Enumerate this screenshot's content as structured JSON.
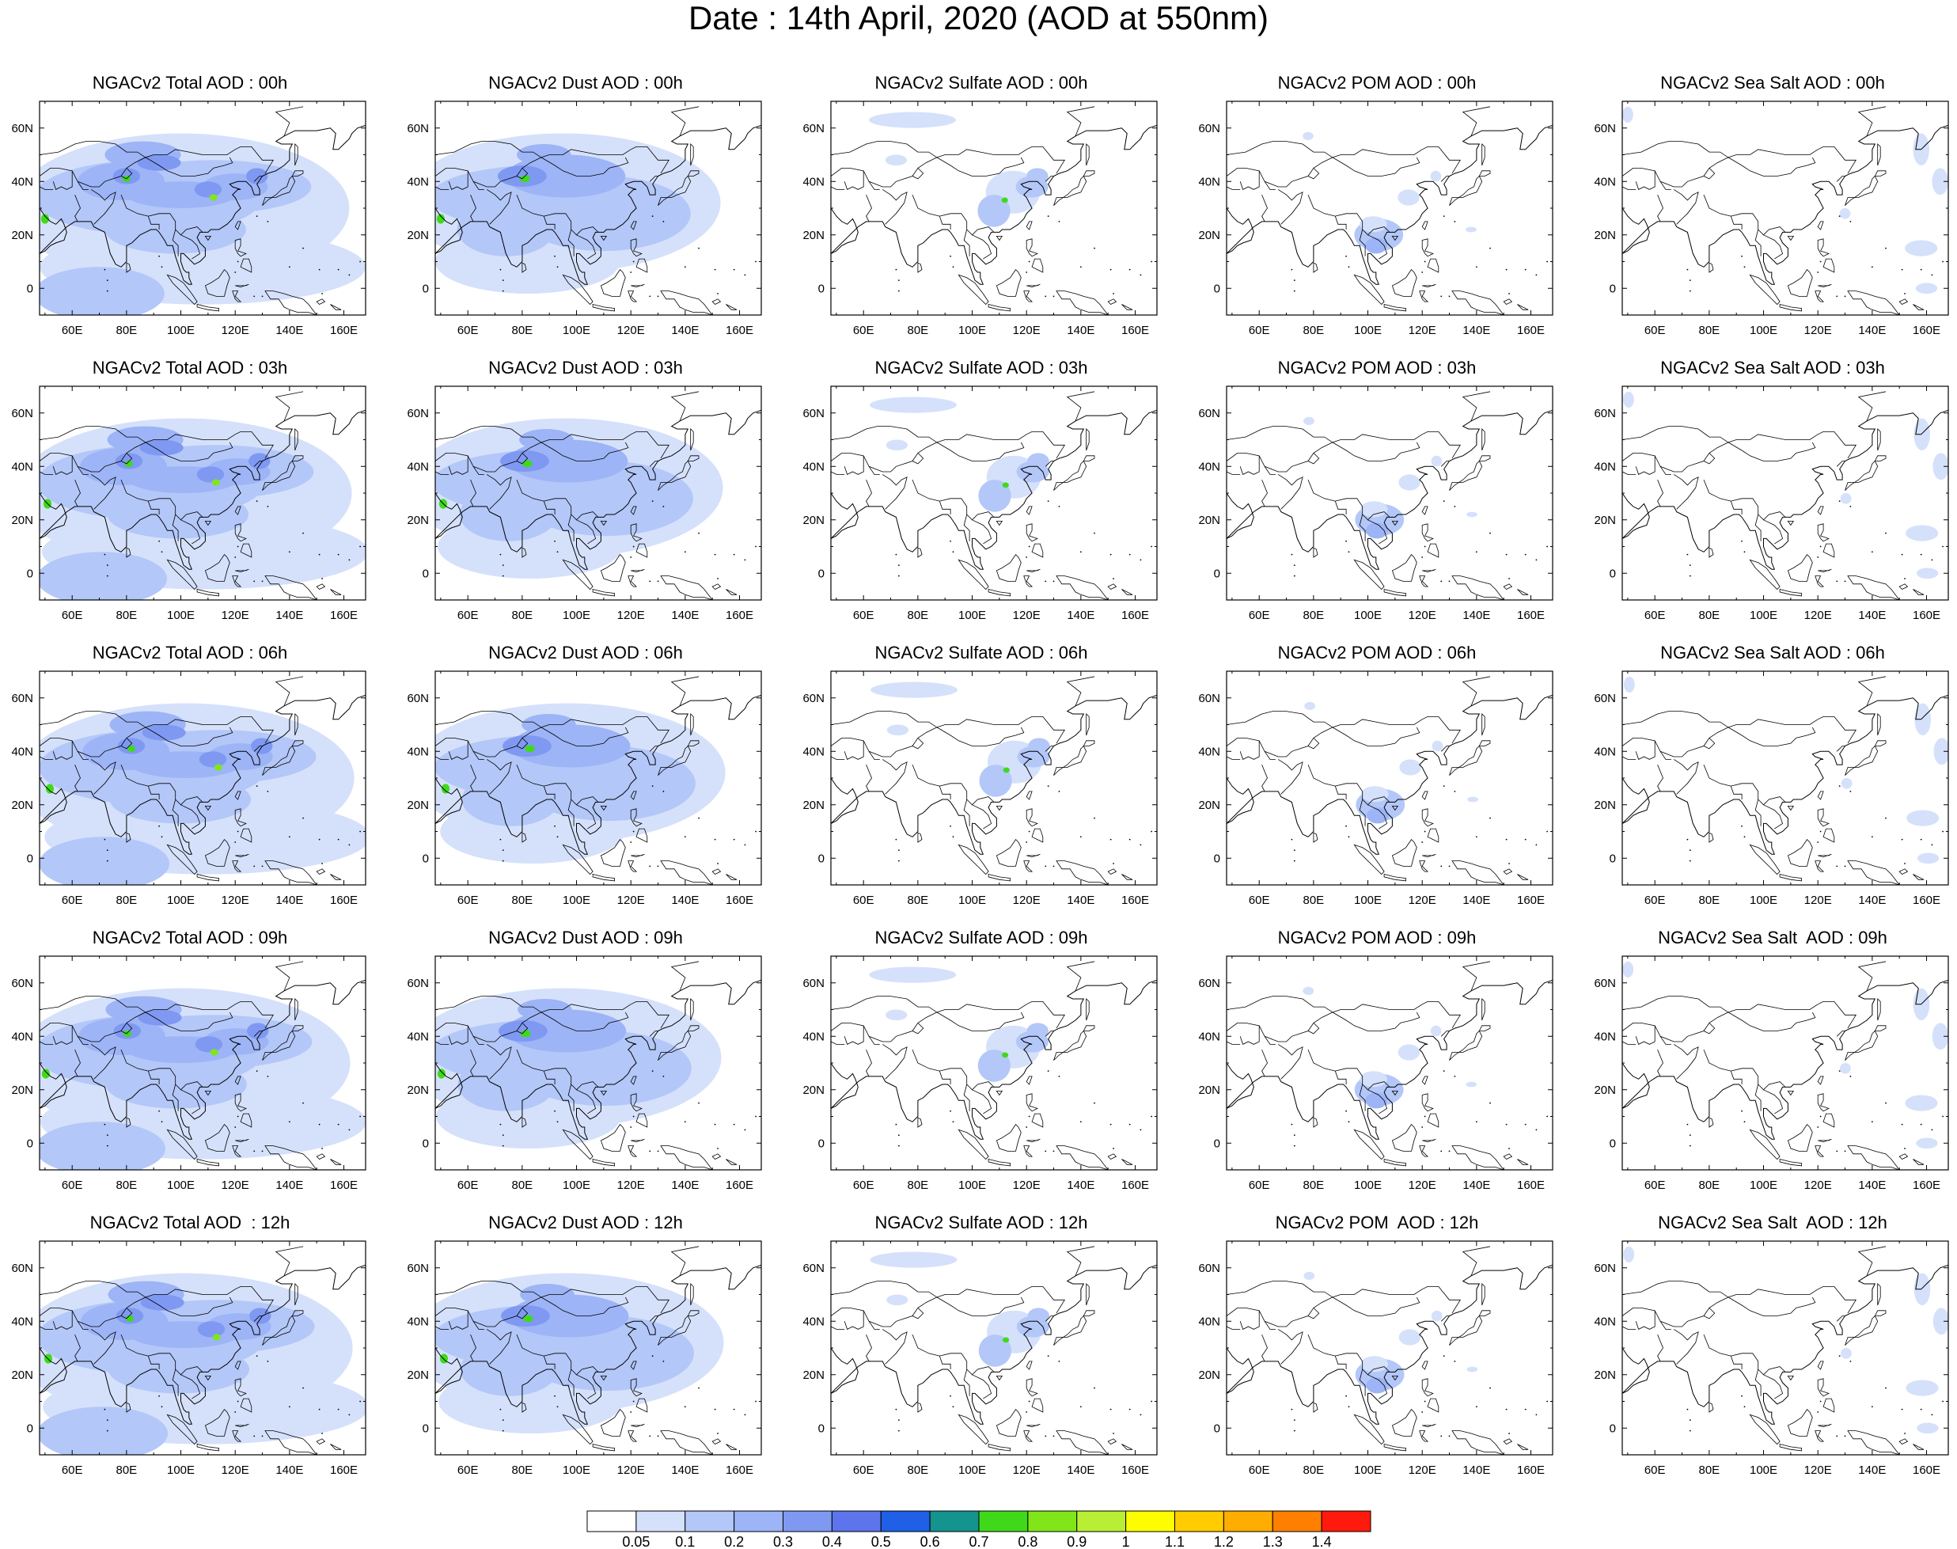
{
  "page_title": "Date : 14th April, 2020 (AOD at 550nm)",
  "longitude_ticks": [
    "60E",
    "80E",
    "100E",
    "120E",
    "140E",
    "160E"
  ],
  "latitude_ticks": [
    "60N",
    "40N",
    "20N",
    "0"
  ],
  "map_extent": {
    "lon_min": 48,
    "lon_max": 168,
    "lat_min": -10,
    "lat_max": 70
  },
  "rows": [
    {
      "hour": "00h",
      "titles": [
        "NGACv2 Total AOD : 00h",
        "NGACv2 Dust AOD : 00h",
        "NGACv2 Sulfate AOD : 00h",
        "NGACv2 POM AOD : 00h",
        "NGACv2 Sea Salt AOD : 00h"
      ]
    },
    {
      "hour": "03h",
      "titles": [
        "NGACv2 Total AOD : 03h",
        "NGACv2 Dust AOD : 03h",
        "NGACv2 Sulfate AOD : 03h",
        "NGACv2 POM AOD : 03h",
        "NGACv2 Sea Salt AOD : 03h"
      ]
    },
    {
      "hour": "06h",
      "titles": [
        "NGACv2 Total AOD : 06h",
        "NGACv2 Dust AOD : 06h",
        "NGACv2 Sulfate AOD : 06h",
        "NGACv2 POM AOD : 06h",
        "NGACv2 Sea Salt AOD : 06h"
      ]
    },
    {
      "hour": "09h",
      "titles": [
        "NGACv2 Total AOD : 09h",
        "NGACv2 Dust AOD : 09h",
        "NGACv2 Sulfate AOD : 09h",
        "NGACv2 POM AOD : 09h",
        "NGACv2 Sea Salt  AOD : 09h"
      ]
    },
    {
      "hour": "12h",
      "titles": [
        "NGACv2 Total AOD  : 12h",
        "NGACv2 Dust AOD : 12h",
        "NGACv2 Sulfate AOD : 12h",
        "NGACv2 POM  AOD : 12h",
        "NGACv2 Sea Salt  AOD : 12h"
      ]
    }
  ],
  "colorbar": {
    "labels": [
      "0.05",
      "0.1",
      "0.2",
      "0.3",
      "0.4",
      "0.5",
      "0.6",
      "0.7",
      "0.8",
      "0.9",
      "1",
      "1.1",
      "1.2",
      "1.3",
      "1.4"
    ],
    "colors": [
      "#ffffff",
      "#d5e1fb",
      "#b3c7f8",
      "#9db4f6",
      "#7f99f2",
      "#5d74ec",
      "#1f60e6",
      "#14938f",
      "#40d91a",
      "#80e61a",
      "#b8ee33",
      "#fdfd00",
      "#ffcc00",
      "#ffad00",
      "#ff7f00",
      "#ff1a0d"
    ]
  },
  "species": [
    "Total",
    "Dust",
    "Sulfate",
    "POM",
    "Sea Salt"
  ]
}
